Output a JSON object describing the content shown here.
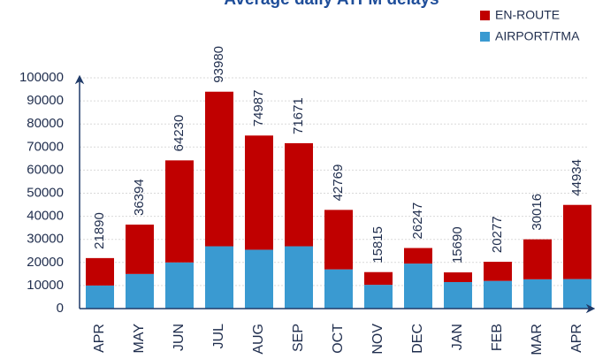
{
  "chart_data": {
    "type": "stacked_bar",
    "title": "Average daily ATFM delays",
    "categories": [
      "APR",
      "MAY",
      "JUN",
      "JUL",
      "AUG",
      "SEP",
      "OCT",
      "NOV",
      "DEC",
      "JAN",
      "FEB",
      "MAR",
      "APR"
    ],
    "series": [
      {
        "name": "AIRPORT/TMA",
        "color": "#3a9ad1",
        "values": [
          10000,
          15000,
          20000,
          27000,
          25500,
          27000,
          17000,
          10300,
          19500,
          11500,
          12000,
          12700,
          12800
        ]
      },
      {
        "name": "EN-ROUTE",
        "color": "#c00000",
        "values": [
          11890,
          21394,
          44230,
          66980,
          49487,
          44671,
          25769,
          5515,
          6747,
          4190,
          8277,
          17316,
          32134
        ]
      }
    ],
    "totals": [
      21890,
      36394,
      64230,
      93980,
      74987,
      71671,
      42769,
      15815,
      26247,
      15690,
      20277,
      30016,
      44934
    ],
    "ylim": [
      0,
      100000
    ],
    "yticks": [
      0,
      10000,
      20000,
      30000,
      40000,
      50000,
      60000,
      70000,
      80000,
      90000,
      100000
    ],
    "grid": true
  }
}
